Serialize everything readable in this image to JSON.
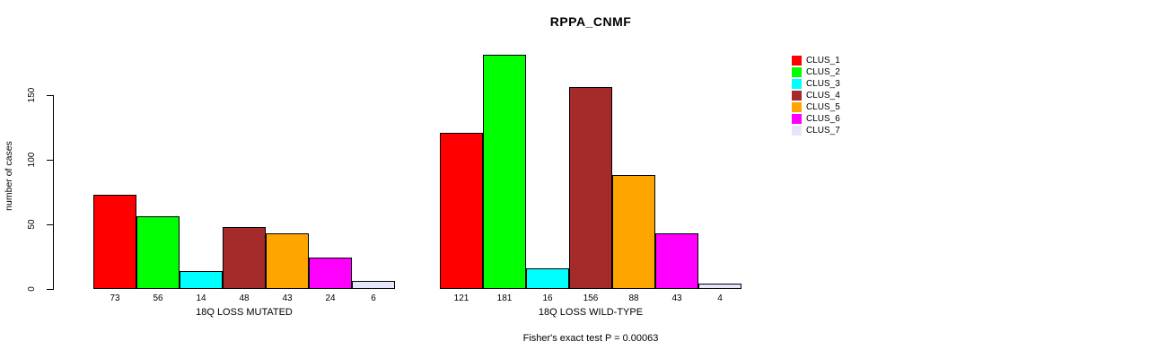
{
  "title": "RPPA_CNMF",
  "footer": "Fisher's exact test P = 0.00063",
  "y_axis": {
    "label": "number of cases",
    "ticks": [
      0,
      50,
      100,
      150
    ]
  },
  "legend": {
    "items": [
      {
        "label": "CLUS_1",
        "color": "#FF0000"
      },
      {
        "label": "CLUS_2",
        "color": "#00FF00"
      },
      {
        "label": "CLUS_3",
        "color": "#00FFFF"
      },
      {
        "label": "CLUS_4",
        "color": "#A52A2A"
      },
      {
        "label": "CLUS_5",
        "color": "#FFA500"
      },
      {
        "label": "CLUS_6",
        "color": "#FF00FF"
      },
      {
        "label": "CLUS_7",
        "color": "#E6E6FA"
      }
    ]
  },
  "chart_data": {
    "type": "bar",
    "title": "RPPA_CNMF",
    "xlabel": "",
    "ylabel": "number of cases",
    "ylim": [
      0,
      185
    ],
    "y_ticks": [
      0,
      50,
      100,
      150
    ],
    "grid": false,
    "legend_position": "right-outside",
    "categories": [
      "CLUS_1",
      "CLUS_2",
      "CLUS_3",
      "CLUS_4",
      "CLUS_5",
      "CLUS_6",
      "CLUS_7"
    ],
    "series_colors": [
      "#FF0000",
      "#00FF00",
      "#00FFFF",
      "#A52A2A",
      "#FFA500",
      "#FF00FF",
      "#E6E6FA"
    ],
    "groups": [
      {
        "label": "18Q LOSS MUTATED",
        "values": [
          73,
          56,
          14,
          48,
          43,
          24,
          6
        ]
      },
      {
        "label": "18Q LOSS WILD-TYPE",
        "values": [
          121,
          181,
          16,
          156,
          88,
          43,
          4
        ]
      }
    ],
    "annotation": "Fisher's exact test P = 0.00063"
  }
}
